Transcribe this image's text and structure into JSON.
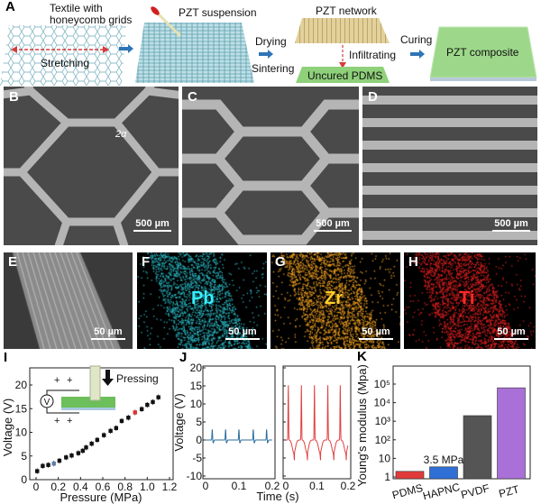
{
  "panelA": {
    "label": "A",
    "textile": "Textile with\nhoneycomb grids",
    "stretching": "Stretching",
    "suspension": "PZT suspension",
    "drying": "Drying",
    "sintering": "Sintering",
    "network": "PZT network",
    "infiltrating": "Infiltrating",
    "uncured": "Uncured PDMS",
    "curing": "Curing",
    "composite": "PZT composite",
    "colors": {
      "arrow": "#2e75b6",
      "pdms": "#8fd07a",
      "network": "#d8c48a",
      "textile": "#6aa9b8"
    }
  },
  "sem": [
    {
      "label": "B",
      "scale": "500 µm",
      "annotation": "2α"
    },
    {
      "label": "C",
      "scale": "500 µm"
    },
    {
      "label": "D",
      "scale": "500 µm"
    }
  ],
  "eds": [
    {
      "label": "E",
      "scale": "50 µm",
      "element": "",
      "color": "#9a9a9a"
    },
    {
      "label": "F",
      "scale": "50 µm",
      "element": "Pb",
      "color": "#2ab8c4"
    },
    {
      "label": "G",
      "scale": "50 µm",
      "element": "Zr",
      "color": "#f0a020"
    },
    {
      "label": "H",
      "scale": "50 µm",
      "element": "Ti",
      "color": "#e02020"
    }
  ],
  "panelI": {
    "label": "I",
    "inset_label": "Pressing",
    "meter": "V",
    "plus": "+"
  },
  "panelJ": {
    "label": "J"
  },
  "panelK": {
    "label": "K",
    "annotation": "3.5 MPa"
  },
  "chart_data": [
    {
      "type": "scatter",
      "panel": "I",
      "xlabel": "Pressure (MPa)",
      "ylabel": "Voltage (V)",
      "xlim": [
        -0.05,
        1.2
      ],
      "ylim": [
        0,
        24
      ],
      "xticks": [
        "0",
        "0.2",
        "0.4",
        "0.6",
        "0.8",
        "1.0",
        "1.2"
      ],
      "yticks": [
        "0",
        "5",
        "10",
        "15",
        "20"
      ],
      "x": [
        0.01,
        0.06,
        0.11,
        0.16,
        0.21,
        0.27,
        0.32,
        0.38,
        0.42,
        0.45,
        0.5,
        0.55,
        0.61,
        0.67,
        0.72,
        0.77,
        0.83,
        0.89,
        0.95,
        1.0,
        1.05,
        1.1
      ],
      "y": [
        1.8,
        2.9,
        3.1,
        3.4,
        4.0,
        4.7,
        5.1,
        5.6,
        6.1,
        6.8,
        7.6,
        8.4,
        9.4,
        10.3,
        10.9,
        12.4,
        13.1,
        14.2,
        14.9,
        15.8,
        16.4,
        17.4
      ],
      "highlight": {
        "blue_index": 3,
        "red_index": 17
      },
      "colors": {
        "default": "#111111",
        "blue": "#5b7fa8",
        "red": "#e03030"
      }
    },
    {
      "type": "line",
      "panel": "J",
      "xlabel": "Time (s)",
      "ylabel": "Voltage (V)",
      "xlim": [
        0,
        0.2
      ],
      "ylim": [
        -10,
        20
      ],
      "xticks": [
        "0",
        "0.1",
        "0.2"
      ],
      "yticks": [
        "-10",
        "-5",
        "0",
        "5",
        "10",
        "15",
        "20"
      ],
      "series": [
        {
          "color": "#2e6f9e",
          "peak_times": [
            0.02,
            0.06,
            0.1,
            0.143,
            0.183
          ],
          "peak": 3,
          "trough": -0.8
        },
        {
          "color": "#e04040",
          "peak_times": [
            0.008,
            0.05,
            0.092,
            0.135,
            0.175
          ],
          "peak": 15.2,
          "trough": -6
        }
      ]
    },
    {
      "type": "bar",
      "panel": "K",
      "ylabel": "Young's modulus (Mpa)",
      "scale": "log",
      "ylim": [
        1,
        400000
      ],
      "categories": [
        "PDMS",
        "HAPNC",
        "PVDF",
        "PZT"
      ],
      "values": [
        2,
        3.5,
        2000,
        63000
      ],
      "colors": [
        "#e03a3a",
        "#2f6fd6",
        "#555555",
        "#a970d8"
      ],
      "yticks": [
        "1",
        "10",
        "10²",
        "10³",
        "10⁴",
        "10⁵"
      ]
    }
  ]
}
